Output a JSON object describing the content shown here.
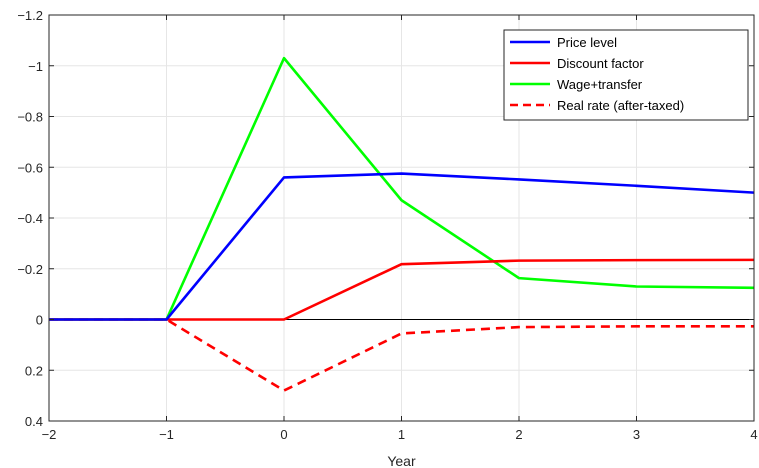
{
  "chart_data": {
    "type": "line",
    "xlabel": "Year",
    "ylabel": "",
    "xlim": [
      -2,
      4
    ],
    "ylim": [
      -1.2,
      0.4
    ],
    "y_reversed": true,
    "grid": true,
    "legend_position": "top-right",
    "xticks": [
      -2,
      -1,
      0,
      1,
      2,
      3,
      4
    ],
    "yticks": [
      -1.2,
      -1,
      -0.8,
      -0.6,
      -0.4,
      -0.2,
      0,
      0.2,
      0.4
    ],
    "xtick_labels": [
      "−2",
      "−1",
      "0",
      "1",
      "2",
      "3",
      "4"
    ],
    "ytick_labels": [
      "−1.2",
      "−1",
      "−0.8",
      "−0.6",
      "−0.4",
      "−0.2",
      "0",
      "0.2",
      "0.4"
    ],
    "x": [
      -2,
      -1,
      0,
      1,
      2,
      3,
      4
    ],
    "series": [
      {
        "name": "Price level",
        "color": "#0000ff",
        "style": "solid",
        "values": [
          0,
          0,
          -0.56,
          -0.575,
          -0.552,
          -0.527,
          -0.5
        ]
      },
      {
        "name": "Discount factor",
        "color": "#ff0000",
        "style": "solid",
        "values": [
          0,
          0,
          0,
          -0.218,
          -0.232,
          -0.234,
          -0.235
        ]
      },
      {
        "name": "Wage+transfer",
        "color": "#00ff00",
        "style": "solid",
        "values": [
          0,
          0,
          -1.03,
          -0.47,
          -0.163,
          -0.13,
          -0.125
        ]
      },
      {
        "name": "Real rate (after-taxed)",
        "color": "#ff0000",
        "style": "dashed",
        "values": [
          0,
          0,
          0.28,
          0.055,
          0.03,
          0.027,
          0.027
        ]
      }
    ]
  }
}
